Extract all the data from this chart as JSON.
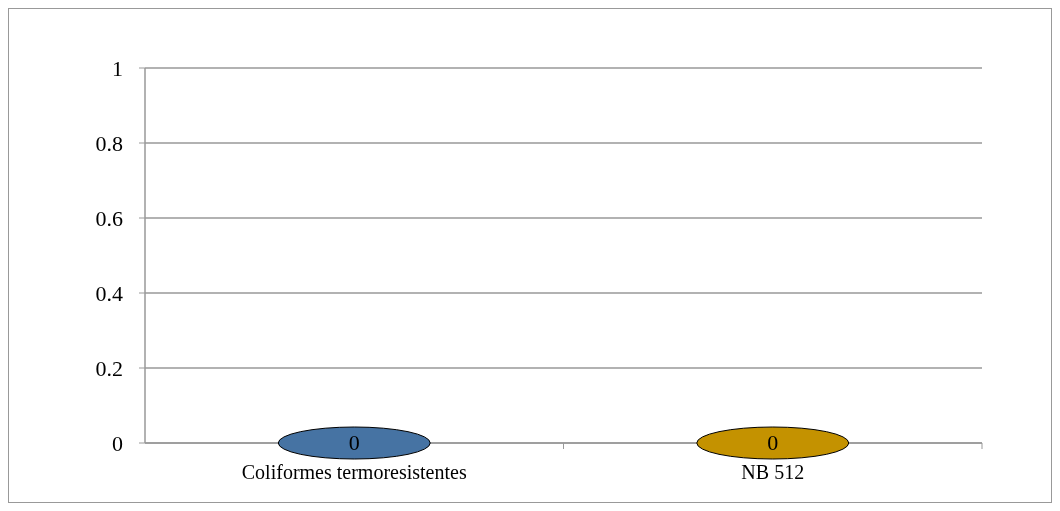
{
  "chart_data": {
    "type": "bar",
    "categories": [
      "Coliformes termoresistentes",
      "NB 512"
    ],
    "values": [
      0,
      0
    ],
    "colors": [
      "#4673a3",
      "#c49200"
    ],
    "ylim": [
      0,
      1
    ],
    "yticks": [
      0,
      0.2,
      0.4,
      0.6,
      0.8,
      1
    ],
    "grid": "y",
    "data_labels": true
  }
}
